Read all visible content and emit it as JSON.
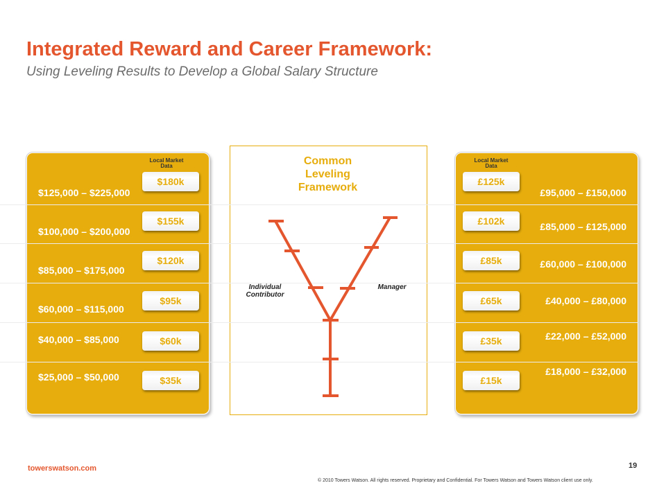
{
  "header": {
    "title": "Integrated Reward and Career Framework:",
    "subtitle": "Using Leveling Results to Develop a Global Salary Structure"
  },
  "left_panel": {
    "market_label_line1": "Local Market",
    "market_label_line2": "Data",
    "rows": [
      {
        "range": "$125,000 – $225,000",
        "market": "$180k"
      },
      {
        "range": "$100,000 – $200,000",
        "market": "$155k"
      },
      {
        "range": "$85,000 – $175,000",
        "market": "$120k"
      },
      {
        "range": "$60,000 – $115,000",
        "market": "$95k"
      },
      {
        "range": "$40,000 – $85,000",
        "market": "$60k"
      },
      {
        "range": "$25,000 – $50,000",
        "market": "$35k"
      }
    ]
  },
  "center": {
    "title_line1": "Common",
    "title_line2": "Leveling",
    "title_line3": "Framework",
    "left_branch_line1": "Individual",
    "left_branch_line2": "Contributor",
    "right_branch": "Manager",
    "accent_color": "#e4572e"
  },
  "right_panel": {
    "market_label_line1": "Local Market",
    "market_label_line2": "Data",
    "rows": [
      {
        "range": "£95,000 – £150,000",
        "market": "£125k"
      },
      {
        "range": "£85,000 – £125,000",
        "market": "£102k"
      },
      {
        "range": "£60,000 – £100,000",
        "market": "£85k"
      },
      {
        "range": "£40,000 – £80,000",
        "market": "£65k"
      },
      {
        "range": "£22,000 – £52,000",
        "market": "£35k"
      },
      {
        "range": "£18,000 – £32,000",
        "market": "£15k"
      }
    ]
  },
  "footer": {
    "site": "towerswatson.com",
    "page": "19",
    "copyright": "© 2010 Towers Watson. All rights reserved. Proprietary and Confidential.  For Towers Watson and Towers Watson client use only."
  },
  "colors": {
    "title": "#e4572e",
    "panel": "#e6ad0c",
    "text_white": "#ffffff"
  }
}
